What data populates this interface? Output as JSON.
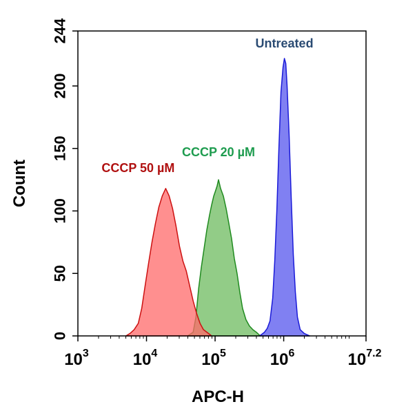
{
  "chart_data": {
    "type": "area",
    "title": "",
    "xlabel": "APC-H",
    "ylabel": "Count",
    "xscale": "log",
    "xlim_log10": [
      3,
      7.2
    ],
    "ylim": [
      0,
      244
    ],
    "x_ticks": [
      {
        "base": "10",
        "exp": "3",
        "log10": 3
      },
      {
        "base": "10",
        "exp": "4",
        "log10": 4
      },
      {
        "base": "10",
        "exp": "5",
        "log10": 5
      },
      {
        "base": "10",
        "exp": "6",
        "log10": 6
      },
      {
        "base": "10",
        "exp": "7.2",
        "log10": 7.2
      }
    ],
    "y_ticks": [
      "0",
      "50",
      "100",
      "150",
      "200",
      "244"
    ],
    "y_tick_values": [
      0,
      50,
      100,
      150,
      200,
      244
    ],
    "grid": false,
    "legend": "none",
    "series": [
      {
        "name": "CCCP 20 µM",
        "label": "CCCP 20 µM",
        "fill": "#6dbb5f",
        "stroke": "#1f8a1f",
        "label_color": "#1e9c4f",
        "opacity": 0.75,
        "points": [
          [
            4.6,
            0
          ],
          [
            4.68,
            3
          ],
          [
            4.72,
            15
          ],
          [
            4.76,
            38
          ],
          [
            4.8,
            55
          ],
          [
            4.84,
            70
          ],
          [
            4.88,
            85
          ],
          [
            4.92,
            97
          ],
          [
            4.95,
            105
          ],
          [
            4.98,
            112
          ],
          [
            5.0,
            115
          ],
          [
            5.03,
            120
          ],
          [
            5.05,
            125
          ],
          [
            5.08,
            118
          ],
          [
            5.12,
            112
          ],
          [
            5.16,
            102
          ],
          [
            5.2,
            90
          ],
          [
            5.24,
            78
          ],
          [
            5.28,
            62
          ],
          [
            5.32,
            50
          ],
          [
            5.36,
            35
          ],
          [
            5.4,
            22
          ],
          [
            5.45,
            13
          ],
          [
            5.5,
            8
          ],
          [
            5.55,
            5
          ],
          [
            5.6,
            3
          ],
          [
            5.66,
            0
          ]
        ]
      },
      {
        "name": "CCCP 50 µM",
        "label": "CCCP 50 µM",
        "fill": "#ff6a6a",
        "stroke": "#cc1010",
        "label_color": "#b01010",
        "opacity": 0.75,
        "points": [
          [
            3.7,
            0
          ],
          [
            3.76,
            2
          ],
          [
            3.82,
            5
          ],
          [
            3.88,
            10
          ],
          [
            3.93,
            22
          ],
          [
            3.98,
            40
          ],
          [
            4.03,
            58
          ],
          [
            4.08,
            75
          ],
          [
            4.13,
            90
          ],
          [
            4.18,
            103
          ],
          [
            4.23,
            112
          ],
          [
            4.28,
            118
          ],
          [
            4.33,
            112
          ],
          [
            4.38,
            102
          ],
          [
            4.43,
            88
          ],
          [
            4.48,
            72
          ],
          [
            4.53,
            60
          ],
          [
            4.58,
            52
          ],
          [
            4.63,
            40
          ],
          [
            4.68,
            28
          ],
          [
            4.73,
            18
          ],
          [
            4.78,
            10
          ],
          [
            4.83,
            5
          ],
          [
            4.88,
            3
          ],
          [
            4.95,
            0
          ]
        ]
      },
      {
        "name": "Untreated",
        "label": "Untreated",
        "fill": "#6a6af0",
        "stroke": "#1a1ad8",
        "label_color": "#2a4b73",
        "opacity": 0.85,
        "points": [
          [
            5.65,
            0
          ],
          [
            5.72,
            3
          ],
          [
            5.76,
            6
          ],
          [
            5.8,
            12
          ],
          [
            5.84,
            30
          ],
          [
            5.87,
            60
          ],
          [
            5.9,
            100
          ],
          [
            5.93,
            150
          ],
          [
            5.96,
            195
          ],
          [
            5.99,
            215
          ],
          [
            6.01,
            222
          ],
          [
            6.03,
            218
          ],
          [
            6.05,
            200
          ],
          [
            6.08,
            160
          ],
          [
            6.11,
            110
          ],
          [
            6.14,
            65
          ],
          [
            6.17,
            35
          ],
          [
            6.2,
            15
          ],
          [
            6.24,
            5
          ],
          [
            6.3,
            2
          ],
          [
            6.38,
            0
          ]
        ]
      }
    ]
  }
}
